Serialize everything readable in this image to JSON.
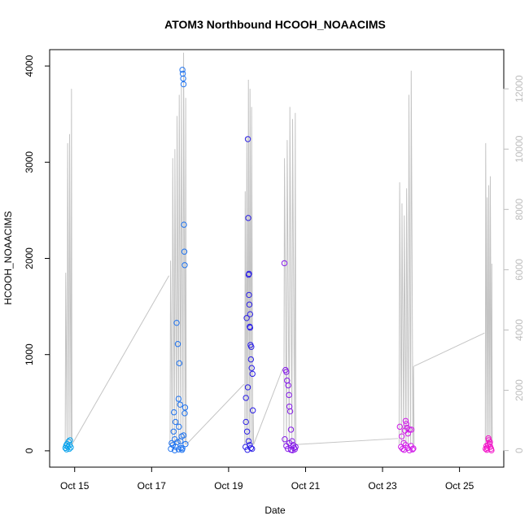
{
  "chart_data": {
    "type": "scatter",
    "title": "ATOM3 Northbound HCOOH_NOAACIMS",
    "xlabel": "Date",
    "ylabel": "HCOOH_NOAACIMS",
    "x_ticks": [
      "Oct 15",
      "Oct 17",
      "Oct 19",
      "Oct 21",
      "Oct 23",
      "Oct 25"
    ],
    "x_tick_values": [
      15,
      17,
      19,
      21,
      23,
      25
    ],
    "xlim": [
      14.35,
      26.15
    ],
    "ylim": [
      -170,
      4170
    ],
    "y_ticks": [
      0,
      1000,
      2000,
      3000,
      4000
    ],
    "y2lim": [
      -550,
      13300
    ],
    "y2_ticks": [
      0,
      2000,
      4000,
      6000,
      8000,
      10000,
      12000
    ],
    "y2_series_note": "gray line = aircraft altitude (secondary axis)",
    "color_scale": [
      "#00bfff",
      "#0000ff",
      "#ff00ff"
    ],
    "flights": [
      {
        "day_range": [
          14.73,
          14.93
        ],
        "color": "#0aa3ec",
        "points": [
          [
            14.76,
            30
          ],
          [
            14.78,
            55
          ],
          [
            14.8,
            70
          ],
          [
            14.82,
            40
          ],
          [
            14.84,
            95
          ],
          [
            14.86,
            20
          ],
          [
            14.88,
            110
          ],
          [
            14.9,
            35
          ],
          [
            14.79,
            15
          ],
          [
            14.87,
            60
          ]
        ]
      },
      {
        "day_range": [
          17.45,
          17.9
        ],
        "color": "#1f73ef",
        "points": [
          [
            17.5,
            20
          ],
          [
            17.55,
            60
          ],
          [
            17.6,
            120
          ],
          [
            17.62,
            300
          ],
          [
            17.58,
            400
          ],
          [
            17.65,
            1330
          ],
          [
            17.68,
            1110
          ],
          [
            17.7,
            540
          ],
          [
            17.72,
            910
          ],
          [
            17.74,
            480
          ],
          [
            17.75,
            100
          ],
          [
            17.78,
            150
          ],
          [
            17.8,
            3960
          ],
          [
            17.81,
            3920
          ],
          [
            17.82,
            3870
          ],
          [
            17.83,
            3810
          ],
          [
            17.84,
            2350
          ],
          [
            17.85,
            2070
          ],
          [
            17.86,
            1930
          ],
          [
            17.87,
            450
          ],
          [
            17.86,
            390
          ],
          [
            17.52,
            80
          ],
          [
            17.57,
            200
          ],
          [
            17.63,
            40
          ],
          [
            17.67,
            90
          ],
          [
            17.71,
            250
          ],
          [
            17.76,
            30
          ],
          [
            17.79,
            10
          ],
          [
            17.83,
            160
          ],
          [
            17.88,
            70
          ],
          [
            17.6,
            5
          ],
          [
            17.7,
            15
          ],
          [
            17.8,
            25
          ]
        ]
      },
      {
        "day_range": [
          19.4,
          19.65
        ],
        "color": "#2b1fe6",
        "points": [
          [
            19.45,
            550
          ],
          [
            19.47,
            1380
          ],
          [
            19.5,
            3240
          ],
          [
            19.51,
            2420
          ],
          [
            19.52,
            1830
          ],
          [
            19.53,
            1620
          ],
          [
            19.54,
            1520
          ],
          [
            19.55,
            1290
          ],
          [
            19.56,
            1280
          ],
          [
            19.57,
            1100
          ],
          [
            19.58,
            950
          ],
          [
            19.6,
            860
          ],
          [
            19.62,
            800
          ],
          [
            19.45,
            300
          ],
          [
            19.48,
            200
          ],
          [
            19.52,
            100
          ],
          [
            19.55,
            60
          ],
          [
            19.58,
            30
          ],
          [
            19.61,
            20
          ],
          [
            19.5,
            660
          ],
          [
            19.53,
            1840
          ],
          [
            19.56,
            1420
          ],
          [
            19.59,
            1080
          ],
          [
            19.63,
            420
          ],
          [
            19.44,
            40
          ],
          [
            19.49,
            10
          ]
        ]
      },
      {
        "day_range": [
          20.4,
          20.75
        ],
        "color": "#8519e8",
        "points": [
          [
            20.45,
            1950
          ],
          [
            20.48,
            840
          ],
          [
            20.5,
            820
          ],
          [
            20.52,
            730
          ],
          [
            20.55,
            680
          ],
          [
            20.57,
            580
          ],
          [
            20.58,
            460
          ],
          [
            20.6,
            410
          ],
          [
            20.62,
            220
          ],
          [
            20.65,
            100
          ],
          [
            20.68,
            60
          ],
          [
            20.7,
            30
          ],
          [
            20.46,
            120
          ],
          [
            20.5,
            50
          ],
          [
            20.54,
            20
          ],
          [
            20.58,
            80
          ],
          [
            20.62,
            10
          ],
          [
            20.66,
            5
          ],
          [
            20.72,
            15
          ],
          [
            20.74,
            40
          ]
        ]
      },
      {
        "day_range": [
          23.4,
          23.82
        ],
        "color": "#d01ae8",
        "points": [
          [
            23.45,
            250
          ],
          [
            23.5,
            150
          ],
          [
            23.55,
            80
          ],
          [
            23.58,
            210
          ],
          [
            23.6,
            310
          ],
          [
            23.62,
            280
          ],
          [
            23.64,
            240
          ],
          [
            23.66,
            180
          ],
          [
            23.7,
            220
          ],
          [
            23.75,
            220
          ],
          [
            23.48,
            40
          ],
          [
            23.52,
            20
          ],
          [
            23.56,
            10
          ],
          [
            23.6,
            60
          ],
          [
            23.65,
            30
          ],
          [
            23.7,
            5
          ],
          [
            23.74,
            50
          ],
          [
            23.78,
            15
          ],
          [
            23.8,
            25
          ]
        ]
      },
      {
        "day_range": [
          25.65,
          25.85
        ],
        "color": "#f314c9",
        "points": [
          [
            25.68,
            20
          ],
          [
            25.7,
            50
          ],
          [
            25.72,
            30
          ],
          [
            25.74,
            60
          ],
          [
            25.76,
            110
          ],
          [
            25.78,
            70
          ],
          [
            25.8,
            40
          ],
          [
            25.82,
            20
          ],
          [
            25.75,
            130
          ],
          [
            25.79,
            90
          ],
          [
            25.71,
            10
          ],
          [
            25.83,
            5
          ]
        ]
      }
    ]
  }
}
